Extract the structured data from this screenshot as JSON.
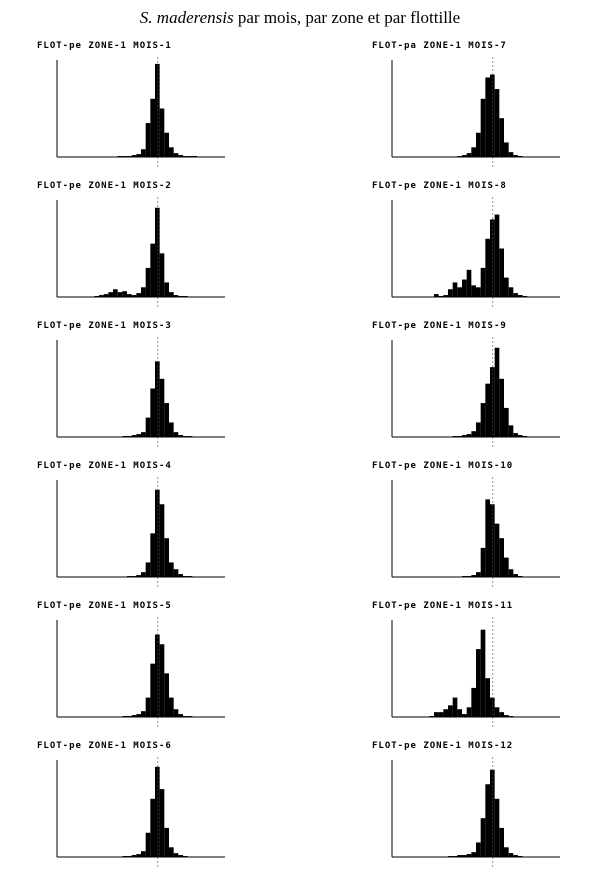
{
  "page_title": {
    "species": "S. maderensis",
    "rest": "par mois, par zone et par flottille"
  },
  "chart_data": [
    {
      "type": "bar",
      "title": "FLOT-pe ZONE-1 MOIS-1",
      "ylim": [
        0,
        100
      ],
      "color": "#000000",
      "values": [
        0,
        0,
        0,
        0,
        0,
        0,
        0,
        0,
        0,
        0,
        0,
        0,
        0,
        1,
        1,
        1,
        2,
        3,
        8,
        35,
        60,
        96,
        50,
        25,
        10,
        4,
        2,
        1,
        1,
        1,
        0,
        0,
        0,
        0,
        0,
        0
      ]
    },
    {
      "type": "bar",
      "title": "FLOT-pe ZONE-1 MOIS-2",
      "ylim": [
        0,
        100
      ],
      "color": "#000000",
      "values": [
        0,
        0,
        0,
        0,
        0,
        0,
        0,
        0,
        1,
        2,
        3,
        5,
        8,
        5,
        6,
        3,
        2,
        4,
        10,
        30,
        55,
        92,
        45,
        15,
        5,
        2,
        1,
        1,
        0,
        0,
        0,
        0,
        0,
        0,
        0,
        0
      ]
    },
    {
      "type": "bar",
      "title": "FLOT-pe ZONE-1 MOIS-3",
      "ylim": [
        0,
        100
      ],
      "color": "#000000",
      "values": [
        0,
        0,
        0,
        0,
        0,
        0,
        0,
        0,
        0,
        0,
        0,
        0,
        0,
        0,
        1,
        1,
        2,
        3,
        5,
        20,
        50,
        78,
        60,
        35,
        15,
        5,
        2,
        1,
        1,
        0,
        0,
        0,
        0,
        0,
        0,
        0
      ]
    },
    {
      "type": "bar",
      "title": "FLOT-pe ZONE-1 MOIS-4",
      "ylim": [
        0,
        100
      ],
      "color": "#000000",
      "values": [
        0,
        0,
        0,
        0,
        0,
        0,
        0,
        0,
        0,
        0,
        0,
        0,
        0,
        0,
        0,
        1,
        1,
        2,
        5,
        15,
        45,
        90,
        75,
        40,
        15,
        8,
        3,
        1,
        1,
        0,
        0,
        0,
        0,
        0,
        0,
        0
      ]
    },
    {
      "type": "bar",
      "title": "FLOT-pe ZONE-1 MOIS-5",
      "ylim": [
        0,
        100
      ],
      "color": "#000000",
      "values": [
        0,
        0,
        0,
        0,
        0,
        0,
        0,
        0,
        0,
        0,
        0,
        0,
        0,
        0,
        1,
        1,
        2,
        3,
        6,
        20,
        55,
        85,
        75,
        45,
        20,
        8,
        3,
        1,
        1,
        0,
        0,
        0,
        0,
        0,
        0,
        0
      ]
    },
    {
      "type": "bar",
      "title": "FLOT-pe ZONE-1 MOIS-6",
      "ylim": [
        0,
        100
      ],
      "color": "#000000",
      "values": [
        0,
        0,
        0,
        0,
        0,
        0,
        0,
        0,
        0,
        0,
        0,
        0,
        0,
        0,
        1,
        1,
        2,
        3,
        6,
        25,
        60,
        93,
        70,
        30,
        10,
        4,
        2,
        1,
        0,
        0,
        0,
        0,
        0,
        0,
        0,
        0
      ]
    },
    {
      "type": "bar",
      "title": "FLOT-pa ZONE-1 MOIS-7",
      "ylim": [
        0,
        100
      ],
      "color": "#000000",
      "values": [
        0,
        0,
        0,
        0,
        0,
        0,
        0,
        0,
        0,
        0,
        0,
        0,
        0,
        0,
        1,
        2,
        4,
        10,
        25,
        60,
        82,
        85,
        70,
        40,
        15,
        5,
        2,
        1,
        0,
        0,
        0,
        0,
        0,
        0,
        0,
        0
      ]
    },
    {
      "type": "bar",
      "title": "FLOT-pe ZONE-1 MOIS-8",
      "ylim": [
        0,
        100
      ],
      "color": "#000000",
      "values": [
        0,
        0,
        0,
        0,
        0,
        0,
        0,
        0,
        0,
        3,
        1,
        2,
        8,
        15,
        10,
        18,
        28,
        12,
        10,
        30,
        60,
        80,
        85,
        50,
        20,
        10,
        4,
        2,
        1,
        0,
        0,
        0,
        0,
        0,
        0,
        0
      ]
    },
    {
      "type": "bar",
      "title": "FLOT-pe ZONE-1 MOIS-9",
      "ylim": [
        0,
        100
      ],
      "color": "#000000",
      "values": [
        0,
        0,
        0,
        0,
        0,
        0,
        0,
        0,
        0,
        0,
        0,
        0,
        0,
        1,
        1,
        2,
        3,
        6,
        15,
        35,
        55,
        72,
        92,
        60,
        30,
        12,
        4,
        2,
        1,
        0,
        0,
        0,
        0,
        0,
        0,
        0
      ]
    },
    {
      "type": "bar",
      "title": "FLOT-pe ZONE-1 MOIS-10",
      "ylim": [
        0,
        100
      ],
      "color": "#000000",
      "values": [
        0,
        0,
        0,
        0,
        0,
        0,
        0,
        0,
        0,
        0,
        0,
        0,
        0,
        0,
        0,
        1,
        1,
        2,
        5,
        30,
        80,
        75,
        55,
        40,
        20,
        8,
        3,
        1,
        0,
        0,
        0,
        0,
        0,
        0,
        0,
        0
      ]
    },
    {
      "type": "bar",
      "title": "FLOT-pe ZONE-1 MOIS-11",
      "ylim": [
        0,
        100
      ],
      "color": "#000000",
      "values": [
        0,
        0,
        0,
        0,
        0,
        0,
        0,
        0,
        1,
        5,
        5,
        8,
        12,
        20,
        8,
        3,
        10,
        30,
        70,
        90,
        40,
        20,
        10,
        5,
        2,
        1,
        0,
        0,
        0,
        0,
        0,
        0,
        0,
        0,
        0,
        0
      ]
    },
    {
      "type": "bar",
      "title": "FLOT-pe ZONE-1 MOIS-12",
      "ylim": [
        0,
        100
      ],
      "color": "#000000",
      "values": [
        0,
        0,
        0,
        0,
        0,
        0,
        0,
        0,
        0,
        0,
        0,
        0,
        1,
        1,
        2,
        2,
        3,
        5,
        15,
        40,
        75,
        90,
        60,
        30,
        10,
        4,
        2,
        1,
        0,
        0,
        0,
        0,
        0,
        0,
        0,
        0
      ]
    }
  ]
}
